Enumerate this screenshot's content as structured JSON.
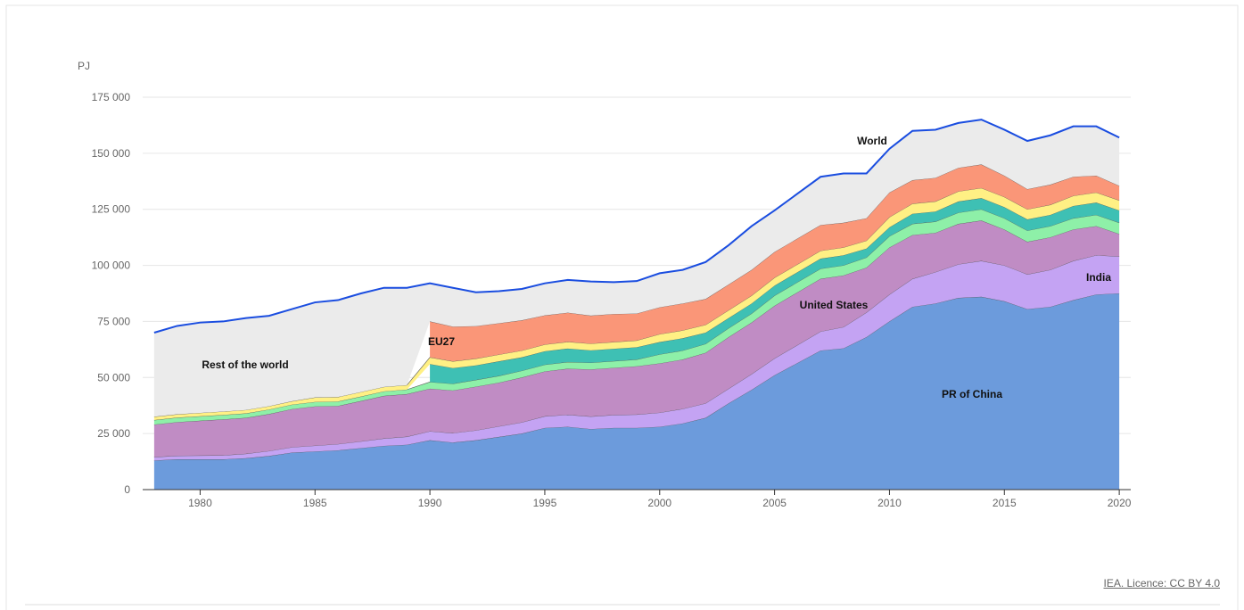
{
  "chart_data": {
    "type": "area",
    "unit": "PJ",
    "source": "IEA. Licence: CC BY 4.0",
    "x": [
      1978,
      1979,
      1980,
      1981,
      1982,
      1983,
      1984,
      1985,
      1986,
      1987,
      1988,
      1989,
      1990,
      1991,
      1992,
      1993,
      1994,
      1995,
      1996,
      1997,
      1998,
      1999,
      2000,
      2001,
      2002,
      2003,
      2004,
      2005,
      2006,
      2007,
      2008,
      2009,
      2010,
      2011,
      2012,
      2013,
      2014,
      2015,
      2016,
      2017,
      2018,
      2019,
      2020
    ],
    "xlim": [
      1977.5,
      2020.5
    ],
    "xticks": [
      1980,
      1985,
      1990,
      1995,
      2000,
      2005,
      2010,
      2015,
      2020
    ],
    "ylim": [
      0,
      175000
    ],
    "yticks": [
      0,
      {
        "value": 25000,
        "label": "25 000"
      },
      {
        "value": 50000,
        "label": "50 000"
      },
      {
        "value": 75000,
        "label": "75 000"
      },
      {
        "value": 100000,
        "label": "100 000"
      },
      {
        "value": 125000,
        "label": "125 000"
      },
      {
        "value": 150000,
        "label": "150 000"
      },
      {
        "value": 175000,
        "label": "175 000"
      }
    ],
    "grid": true,
    "series": [
      {
        "name": "PR of China",
        "color": "#6c9bdc",
        "values": [
          13000,
          13500,
          13500,
          13500,
          14000,
          15000,
          16500,
          17000,
          17500,
          18500,
          19500,
          20000,
          22000,
          21000,
          22000,
          23500,
          25000,
          27500,
          28000,
          27000,
          27500,
          27500,
          28000,
          29500,
          32000,
          38500,
          44500,
          51000,
          56500,
          62000,
          63000,
          68000,
          75000,
          81500,
          83000,
          85500,
          86000,
          84000,
          80500,
          81500,
          84500,
          87000,
          87500
        ]
      },
      {
        "name": "India",
        "color": "#c4a3f3",
        "values": [
          1500,
          1600,
          1700,
          1800,
          2000,
          2200,
          2400,
          2600,
          2800,
          3000,
          3300,
          3600,
          4000,
          4200,
          4400,
          4700,
          5000,
          5200,
          5400,
          5600,
          5800,
          6000,
          6300,
          6500,
          6500,
          6500,
          7000,
          7500,
          8000,
          8500,
          9500,
          11000,
          12000,
          12500,
          14000,
          15000,
          16000,
          16000,
          15500,
          16500,
          17500,
          17500,
          16500
        ]
      },
      {
        "name": "United States",
        "color": "#c08cc4",
        "values": [
          14500,
          15000,
          15500,
          16000,
          16000,
          16500,
          17000,
          17500,
          17000,
          18000,
          19000,
          19000,
          19000,
          19000,
          19500,
          19500,
          20000,
          20000,
          20500,
          21000,
          21000,
          21500,
          22000,
          22000,
          22500,
          23000,
          23000,
          23500,
          23500,
          23500,
          23000,
          20000,
          21000,
          19500,
          17500,
          18000,
          18000,
          16000,
          14500,
          14500,
          14000,
          13000,
          10000
        ]
      },
      {
        "color": "#8ef0a8",
        "values": [
          2000,
          2000,
          2000,
          2000,
          2000,
          2000,
          2000,
          2000,
          2000,
          2000,
          2000,
          2000,
          3000,
          3000,
          3000,
          3000,
          3000,
          3000,
          3000,
          3000,
          3000,
          3000,
          4000,
          4000,
          4000,
          4000,
          4000,
          4500,
          4500,
          4500,
          4500,
          4500,
          5000,
          5000,
          5000,
          5000,
          5000,
          5000,
          5000,
          5000,
          5000,
          5000,
          5000
        ]
      },
      {
        "color": "#3ec0b4",
        "values": [
          null,
          null,
          null,
          null,
          null,
          null,
          null,
          null,
          null,
          null,
          null,
          null,
          8000,
          7000,
          6500,
          6500,
          6000,
          6000,
          6000,
          5500,
          5500,
          5500,
          5500,
          5500,
          5000,
          4500,
          4500,
          4500,
          4500,
          4500,
          4500,
          4000,
          4000,
          4500,
          4500,
          5000,
          5000,
          5000,
          5000,
          5000,
          5500,
          5500,
          5500
        ]
      },
      {
        "color": "#fff084",
        "values": [
          1500,
          1500,
          1500,
          1500,
          1500,
          1500,
          1500,
          2000,
          2000,
          2000,
          2000,
          2000,
          3000,
          3000,
          3000,
          3000,
          3000,
          3000,
          3000,
          3000,
          3000,
          3000,
          3500,
          3500,
          3500,
          3500,
          3500,
          3500,
          3500,
          3500,
          3500,
          3500,
          4500,
          4500,
          4500,
          4500,
          4500,
          4500,
          4500,
          4500,
          4500,
          4500,
          4500
        ]
      },
      {
        "name": "EU27",
        "color": "#fa9678",
        "values": [
          null,
          null,
          null,
          null,
          null,
          null,
          null,
          null,
          null,
          null,
          null,
          null,
          16000,
          15500,
          14500,
          14000,
          13500,
          13000,
          13000,
          12500,
          12500,
          12000,
          12000,
          12000,
          11500,
          11500,
          11500,
          11500,
          11500,
          11500,
          11000,
          10000,
          11000,
          10500,
          10500,
          10500,
          10500,
          9500,
          9000,
          9000,
          8500,
          7500,
          6500
        ]
      }
    ],
    "rest_label": "Rest of the world",
    "rest_color": "#ebebeb",
    "total": {
      "name": "World",
      "color": "#1a4de0",
      "values": [
        70000,
        73000,
        74500,
        75000,
        76500,
        77500,
        80500,
        83500,
        84500,
        87500,
        90000,
        90000,
        92000,
        90000,
        88000,
        88500,
        89500,
        92000,
        93500,
        92800,
        92500,
        93000,
        96500,
        98000,
        101500,
        109000,
        117500,
        124500,
        132000,
        139500,
        141000,
        141000,
        152000,
        160000,
        160500,
        163500,
        165000,
        160500,
        155500,
        158000,
        162000,
        162000,
        157000
      ]
    }
  }
}
